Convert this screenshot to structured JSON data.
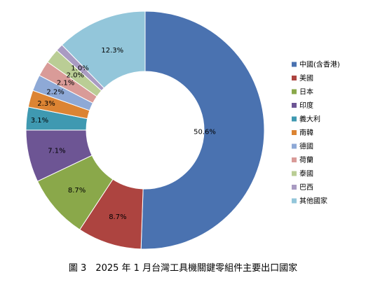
{
  "caption": "圖 3　2025 年 1 月台灣工具機關鍵零組件主要出口國家",
  "chart_data": {
    "type": "pie",
    "variant": "donut",
    "title": "",
    "legend_position": "right",
    "labels_on_slices": true,
    "slices": [
      {
        "name": "中國(含香港)",
        "value": 50.6,
        "label": "50.6%",
        "color": "#4A72B0"
      },
      {
        "name": "美國",
        "value": 8.7,
        "label": "8.7%",
        "color": "#AD4440"
      },
      {
        "name": "日本",
        "value": 8.7,
        "label": "8.7%",
        "color": "#8AA84A"
      },
      {
        "name": "印度",
        "value": 7.1,
        "label": "7.1%",
        "color": "#6D5594"
      },
      {
        "name": "義大利",
        "value": 3.1,
        "label": "3.1%",
        "color": "#3F99B1"
      },
      {
        "name": "南韓",
        "value": 2.3,
        "label": "2.3%",
        "color": "#DC8433"
      },
      {
        "name": "德國",
        "value": 2.2,
        "label": "2.2%",
        "color": "#8EA9D6"
      },
      {
        "name": "荷蘭",
        "value": 2.1,
        "label": "2.1%",
        "color": "#D99B98"
      },
      {
        "name": "泰國",
        "value": 2.0,
        "label": "2.0%",
        "color": "#BACD95"
      },
      {
        "name": "巴西",
        "value": 1.0,
        "label": "1.0%",
        "color": "#A99BC2"
      },
      {
        "name": "其他國家",
        "value": 12.3,
        "label": "12.3%",
        "color": "#93C6DA"
      }
    ]
  }
}
